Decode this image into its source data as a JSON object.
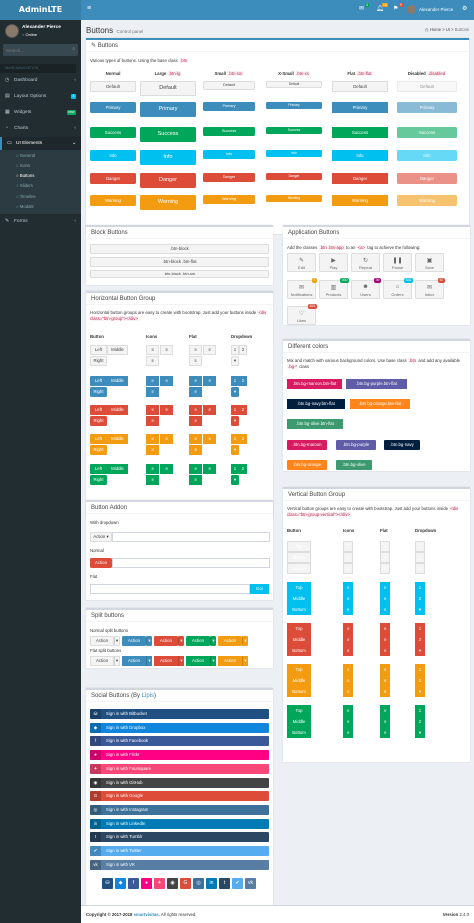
{
  "brand": {
    "logo": "AdminLTE"
  },
  "user": {
    "name": "Alexander Pierce",
    "status": "Online"
  },
  "sidebar": {
    "search_placeholder": "Search...",
    "header": "MAIN NAVIGATION",
    "items": [
      {
        "label": "Dashboard"
      },
      {
        "label": "Layout Options",
        "badge": "4"
      },
      {
        "label": "Widgets",
        "badge": "new"
      },
      {
        "label": "Charts"
      },
      {
        "label": "UI Elements"
      },
      {
        "label": "Forms"
      }
    ],
    "subitems": [
      "General",
      "Icons",
      "Buttons",
      "Sliders",
      "Timeline",
      "Modals"
    ]
  },
  "topbar": {
    "mail_count": "4",
    "notif_count": "10",
    "tasks_count": "9",
    "user_name": "Alexander Pierce"
  },
  "page": {
    "title": "Buttons",
    "subtitle": "Control panel",
    "breadcrumb": [
      "Home",
      "UI",
      "Buttons"
    ]
  },
  "buttons_box": {
    "title": "Buttons",
    "intro": "Various types of buttons. Using the base class",
    "intro_code": ".btn",
    "headers": [
      {
        "label": "Normal",
        "code": ""
      },
      {
        "label": "Large",
        "code": ".btn-lg"
      },
      {
        "label": "Small",
        "code": ".btn-sm"
      },
      {
        "label": "X-Small",
        "code": ".btn-xs"
      },
      {
        "label": "Flat",
        "code": ".btn-flat"
      },
      {
        "label": "Disabled",
        "code": ".disabled"
      }
    ],
    "rows": [
      "Default",
      "Primary",
      "Success",
      "Info",
      "Danger",
      "Warning"
    ]
  },
  "block_box": {
    "title": "Block Buttons",
    "b1": ".btn-block",
    "b2": ".btn-block .btn-flat",
    "b3": ".btn-block .btn-sm"
  },
  "hgroup_box": {
    "title": "Horizontal Button Group",
    "desc": "Horizontal button groups are easy to create with bootstrap. Just add your buttons inside",
    "desc_code": "<div class=\"btn-group\"></div>",
    "headers": [
      "Button",
      "Icons",
      "Flat",
      "Dropdown"
    ],
    "labels": [
      "Left",
      "Middle",
      "Right"
    ],
    "dd": [
      "1",
      "2"
    ]
  },
  "addon_box": {
    "title": "Button Addon",
    "with_dropdown": "With dropdown",
    "action": "Action",
    "normal": "Normal",
    "flat": "Flat",
    "go": "Go!"
  },
  "split_box": {
    "title": "Split buttons",
    "normal": "Normal split buttons",
    "flat": "Flat split buttons",
    "action": "Action"
  },
  "social_box": {
    "title": "Social Buttons (By",
    "link": "Lipis",
    "title_end": ")",
    "items": [
      {
        "label": "Sign in with Bitbucket",
        "icon": "bitbucket-icon",
        "color": "#205081"
      },
      {
        "label": "Sign in with Dropbox",
        "icon": "dropbox-icon",
        "color": "#1087dd"
      },
      {
        "label": "Sign in with Facebook",
        "icon": "facebook-icon",
        "color": "#3b5998"
      },
      {
        "label": "Sign in with Flickr",
        "icon": "flickr-icon",
        "color": "#ff0084"
      },
      {
        "label": "Sign in with Foursquare",
        "icon": "foursquare-icon",
        "color": "#f94877"
      },
      {
        "label": "Sign in with GitHub",
        "icon": "github-icon",
        "color": "#444444"
      },
      {
        "label": "Sign in with Google",
        "icon": "google-icon",
        "color": "#dd4b39"
      },
      {
        "label": "Sign in with Instagram",
        "icon": "instagram-icon",
        "color": "#3f729b"
      },
      {
        "label": "Sign in with LinkedIn",
        "icon": "linkedin-icon",
        "color": "#007bb6"
      },
      {
        "label": "Sign in with Tumblr",
        "icon": "tumblr-icon",
        "color": "#2c4762"
      },
      {
        "label": "Sign in with Twitter",
        "icon": "twitter-icon",
        "color": "#55acee"
      },
      {
        "label": "Sign in with VK",
        "icon": "vk-icon",
        "color": "#587ea3"
      }
    ],
    "icons": [
      {
        "glyph": "⛁",
        "color": "#205081"
      },
      {
        "glyph": "◆",
        "color": "#1087dd"
      },
      {
        "glyph": "f",
        "color": "#3b5998"
      },
      {
        "glyph": "●",
        "color": "#ff0084"
      },
      {
        "glyph": "✦",
        "color": "#f94877"
      },
      {
        "glyph": "◉",
        "color": "#444444"
      },
      {
        "glyph": "G",
        "color": "#dd4b39"
      },
      {
        "glyph": "◎",
        "color": "#3f729b"
      },
      {
        "glyph": "in",
        "color": "#007bb6"
      },
      {
        "glyph": "t",
        "color": "#2c4762"
      },
      {
        "glyph": "✔",
        "color": "#55acee"
      },
      {
        "glyph": "vk",
        "color": "#587ea3"
      }
    ]
  },
  "app_box": {
    "title": "Application Buttons",
    "desc_a": "Add the classes",
    "desc_code1": ".btn .btn-app",
    "desc_b": "to an",
    "desc_code2": "<a>",
    "desc_c": "tag to achieve the following:",
    "buttons": [
      {
        "label": "Edit",
        "glyph": "✎"
      },
      {
        "label": "Play",
        "glyph": "▶"
      },
      {
        "label": "Repeat",
        "glyph": "↻"
      },
      {
        "label": "Pause",
        "glyph": "❚❚"
      },
      {
        "label": "Save",
        "glyph": "▣"
      },
      {
        "label": "Notifications",
        "glyph": "✉",
        "badge": "3",
        "badge_color": "#f39c12"
      },
      {
        "label": "Products",
        "glyph": "▥",
        "badge": "300",
        "badge_color": "#00a65a"
      },
      {
        "label": "Users",
        "glyph": "☻",
        "badge": "39",
        "badge_color": "#a30073"
      },
      {
        "label": "Orders",
        "glyph": "⌂",
        "badge": "531",
        "badge_color": "#00c0ef"
      },
      {
        "label": "Inbox",
        "glyph": "✉",
        "badge": "67",
        "badge_color": "#dd4b39"
      },
      {
        "label": "Likes",
        "glyph": "♡",
        "badge": "891",
        "badge_color": "#dd4b39"
      }
    ]
  },
  "colors_box": {
    "title": "Different colors",
    "desc": "Mix and match with various background colors. Use base class",
    "desc_code1": ".btn",
    "desc_b": "and add any available",
    "desc_code2": ".bg-*",
    "desc_c": "class",
    "flat": [
      {
        "label": ".btn.bg-maroon.btn-flat",
        "color": "#d81b60"
      },
      {
        "label": ".btn.bg-purple.btn-flat",
        "color": "#605ca8"
      },
      {
        "label": ".btn.bg-navy.btn-flat",
        "color": "#001f3f"
      },
      {
        "label": ".btn.bg-orange.btn-flat",
        "color": "#ff851b"
      },
      {
        "label": ".btn.bg-olive.btn-flat",
        "color": "#3d9970"
      }
    ],
    "normal": [
      {
        "label": ".btn.bg-maroon",
        "color": "#d81b60"
      },
      {
        "label": ".btn.bg-purple",
        "color": "#605ca8"
      },
      {
        "label": ".btn.bg-navy",
        "color": "#001f3f"
      },
      {
        "label": ".btn.bg-orange",
        "color": "#ff851b"
      },
      {
        "label": ".btn.bg-olive",
        "color": "#3d9970"
      }
    ]
  },
  "vgroup_box": {
    "title": "Vertical Button Group",
    "desc": "Vertical button groups are easy to create with bootstrap. Just add your buttons inside",
    "desc_code": "<div class=\"btn-group-vertical\"></div>",
    "headers": [
      "Button",
      "Icons",
      "Flat",
      "Dropdown"
    ],
    "labels": [
      "Top",
      "Middle",
      "Bottom"
    ],
    "dd": [
      "1",
      "2"
    ]
  },
  "footer": {
    "copyright": "Copyright © 2017-2018",
    "company": "smartvisitas.",
    "rights": "All rights reserved.",
    "version_label": "Version",
    "version": "2.4.0"
  }
}
